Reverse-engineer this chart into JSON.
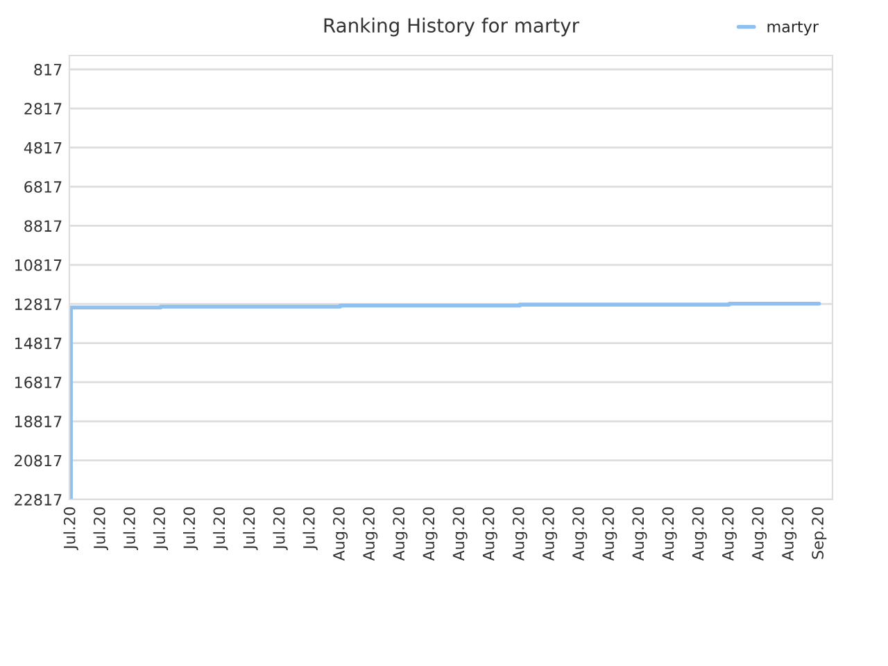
{
  "chart_data": {
    "title": "Ranking History for martyr",
    "type": "step",
    "categories": [
      "Jul.20",
      "Jul.20",
      "Jul.20",
      "Jul.20",
      "Jul.20",
      "Jul.20",
      "Jul.20",
      "Jul.20",
      "Jul.20",
      "Aug.20",
      "Aug.20",
      "Aug.20",
      "Aug.20",
      "Aug.20",
      "Aug.20",
      "Aug.20",
      "Aug.20",
      "Aug.20",
      "Aug.20",
      "Aug.20",
      "Aug.20",
      "Aug.20",
      "Aug.20",
      "Aug.20",
      "Aug.20",
      "Sep.20"
    ],
    "series": [
      {
        "name": "martyr",
        "color": "#90c0f0",
        "values": [
          22800,
          13000,
          13000,
          13000,
          12950,
          12950,
          12950,
          12950,
          12950,
          12950,
          12900,
          12900,
          12900,
          12900,
          12900,
          12900,
          12850,
          12850,
          12850,
          12850,
          12850,
          12850,
          12850,
          12800,
          12800,
          12800
        ]
      }
    ],
    "ylim": [
      22817,
      107
    ],
    "yticks": [
      817,
      2817,
      4817,
      6817,
      8817,
      10817,
      12817,
      14817,
      16817,
      18817,
      20817,
      22817
    ],
    "grid": "y",
    "legend": "top right",
    "marker": "none",
    "line_style": "solid"
  }
}
